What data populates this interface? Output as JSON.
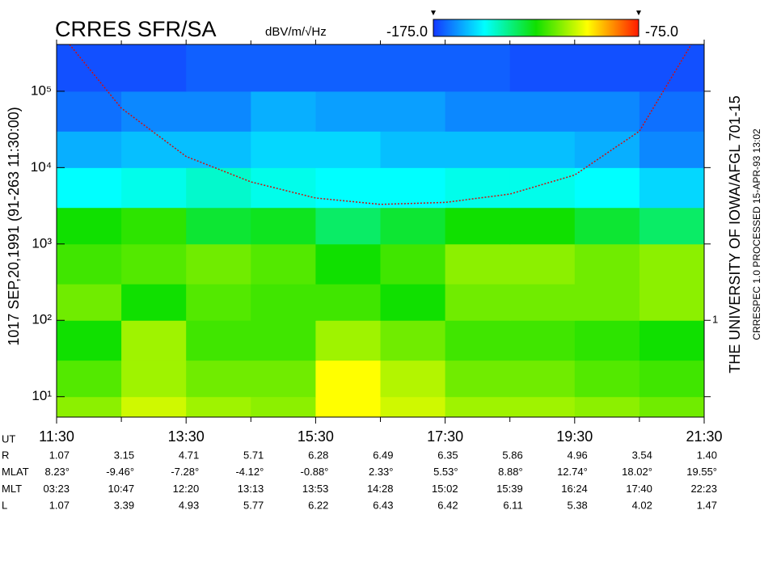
{
  "chart_data": {
    "type": "spectrogram",
    "title": "CRRES SFR/SA",
    "colorbar_unit": "dBV/m/√Hz",
    "clim": [
      -175,
      -75
    ],
    "colorbar_ticks": [
      {
        "value": -175,
        "label": "-175.0"
      },
      {
        "value": -75,
        "label": "-75.0"
      }
    ],
    "colormap": [
      "#1438ff",
      "#00ffff",
      "#10e000",
      "#ffff00",
      "#ff1a00"
    ],
    "left_caption": "1017   SEP,20,1991   (91-263 11:30:00)",
    "right_caption": "THE UNIVERSITY OF IOWA/AFGL 701-15",
    "right_subcaption": "CRRESPEC 1.0   PROCESSED 15-APR-93  13:02",
    "xlim": [
      11.5,
      21.5
    ],
    "xticks": [
      {
        "value": 11.5,
        "label": "11:30"
      },
      {
        "value": 13.5,
        "label": "13:30"
      },
      {
        "value": 15.5,
        "label": "15:30"
      },
      {
        "value": 17.5,
        "label": "17:30"
      },
      {
        "value": 19.5,
        "label": "19:30"
      },
      {
        "value": 21.5,
        "label": "21:30"
      }
    ],
    "xminorticks": [
      12.5,
      14.5,
      16.5,
      18.5,
      20.5
    ],
    "ylog": true,
    "ylim": [
      5.4,
      410000
    ],
    "yticks": [
      {
        "value": 10,
        "label": "10¹"
      },
      {
        "value": 100,
        "label": "10²"
      },
      {
        "value": 1000,
        "label": "10³"
      },
      {
        "value": 10000,
        "label": "10⁴"
      },
      {
        "value": 100000,
        "label": "10⁵"
      }
    ],
    "right_tick_label": "1",
    "x_edges": [
      11.5,
      12.5,
      13.5,
      14.5,
      15.5,
      16.5,
      17.5,
      18.5,
      19.5,
      20.5,
      21.5
    ],
    "y_edges": [
      5.4,
      10,
      30,
      100,
      300,
      1000,
      3000,
      10000,
      30000,
      100000,
      410000
    ],
    "z": [
      [
        -112,
        -105,
        -110,
        -112,
        -100,
        -105,
        -110,
        -110,
        -112,
        -115
      ],
      [
        -118,
        -110,
        -115,
        -115,
        -100,
        -108,
        -115,
        -115,
        -118,
        -120
      ],
      [
        -125,
        -110,
        -120,
        -120,
        -110,
        -115,
        -120,
        -120,
        -122,
        -125
      ],
      [
        -115,
        -125,
        -118,
        -120,
        -120,
        -125,
        -115,
        -115,
        -115,
        -112
      ],
      [
        -120,
        -118,
        -115,
        -118,
        -125,
        -120,
        -112,
        -112,
        -115,
        -112
      ],
      [
        -125,
        -122,
        -130,
        -128,
        -135,
        -130,
        -125,
        -125,
        -130,
        -135
      ],
      [
        -150,
        -148,
        -145,
        -148,
        -150,
        -150,
        -148,
        -148,
        -150,
        -155
      ],
      [
        -160,
        -158,
        -158,
        -155,
        -155,
        -158,
        -158,
        -158,
        -160,
        -165
      ],
      [
        -168,
        -165,
        -165,
        -160,
        -162,
        -162,
        -165,
        -165,
        -165,
        -168
      ],
      [
        -172,
        -172,
        -170,
        -170,
        -170,
        -170,
        -170,
        -172,
        -172,
        -172
      ]
    ],
    "curve": {
      "color": "#d01010",
      "x": [
        11.7,
        12.5,
        13.5,
        14.5,
        15.5,
        16.5,
        17.5,
        18.5,
        19.5,
        20.5,
        21.3
      ],
      "values": [
        410000,
        60000,
        14000,
        6500,
        4000,
        3300,
        3500,
        4500,
        8000,
        30000,
        410000
      ]
    },
    "ephemeris": {
      "ut_label": "UT",
      "rows": [
        {
          "label": "R",
          "values": [
            "1.07",
            "3.15",
            "4.71",
            "5.71",
            "6.28",
            "6.49",
            "6.35",
            "5.86",
            "4.96",
            "3.54",
            "1.40"
          ]
        },
        {
          "label": "MLAT",
          "values": [
            "8.23°",
            "-9.46°",
            "-7.28°",
            "-4.12°",
            "-0.88°",
            "2.33°",
            "5.53°",
            "8.88°",
            "12.74°",
            "18.02°",
            "19.55°"
          ]
        },
        {
          "label": "MLT",
          "values": [
            "03:23",
            "10:47",
            "12:20",
            "13:13",
            "13:53",
            "14:28",
            "15:02",
            "15:39",
            "16:24",
            "17:40",
            "22:23"
          ]
        },
        {
          "label": "L",
          "values": [
            "1.07",
            "3.39",
            "4.93",
            "5.77",
            "6.22",
            "6.43",
            "6.42",
            "6.11",
            "5.38",
            "4.02",
            "1.47"
          ]
        }
      ]
    }
  }
}
